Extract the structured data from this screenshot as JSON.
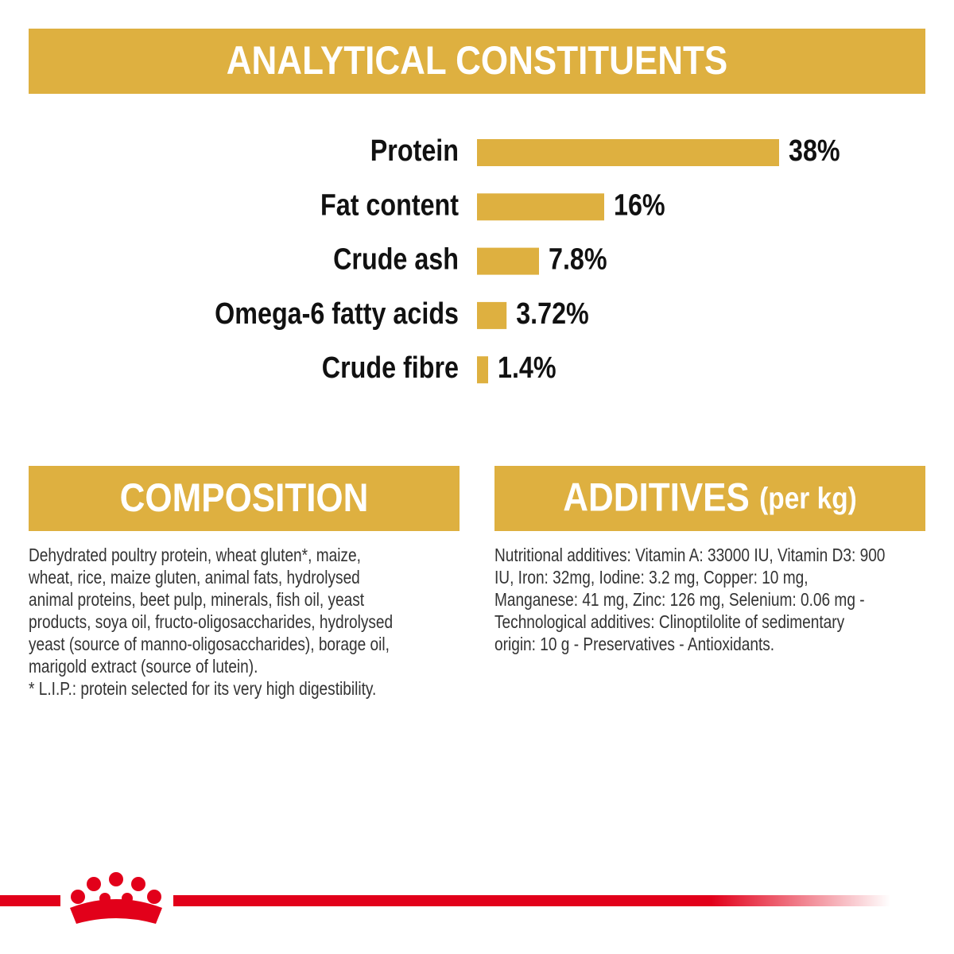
{
  "header": {
    "title": "ANALYTICAL CONSTITUENTS"
  },
  "chart_data": {
    "type": "bar",
    "orientation": "horizontal",
    "color": "#deb040",
    "categories": [
      "Protein",
      "Fat content",
      "Crude ash",
      "Omega-6 fatty acids",
      "Crude fibre"
    ],
    "values": [
      38,
      16,
      7.8,
      3.72,
      1.4
    ],
    "value_labels": [
      "38%",
      "16%",
      "7.8%",
      "3.72%",
      "1.4%"
    ]
  },
  "composition": {
    "title": "COMPOSITION",
    "lines": [
      "Dehydrated poultry protein, wheat gluten*, maize,",
      "wheat, rice, maize gluten, animal fats, hydrolysed",
      "animal proteins, beet pulp, minerals, fish oil, yeast",
      "products, soya oil, fructo-oligosaccharides, hydrolysed",
      "yeast (source of manno-oligosaccharides), borage oil,",
      "marigold extract (source of lutein).",
      "* L.I.P.: protein selected for its very high digestibility."
    ]
  },
  "additives": {
    "title": "ADDITIVES",
    "title_suffix": "(per kg)",
    "lines": [
      "Nutritional additives: Vitamin A: 33000 IU, Vitamin D3: 900",
      "IU, Iron: 32mg, Iodine: 3.2 mg, Copper: 10 mg,",
      "Manganese: 41 mg, Zinc: 126 mg, Selenium: 0.06 mg -",
      "Technological additives: Clinoptilolite of sedimentary",
      "origin: 10 g - Preservatives - Antioxidants."
    ]
  }
}
